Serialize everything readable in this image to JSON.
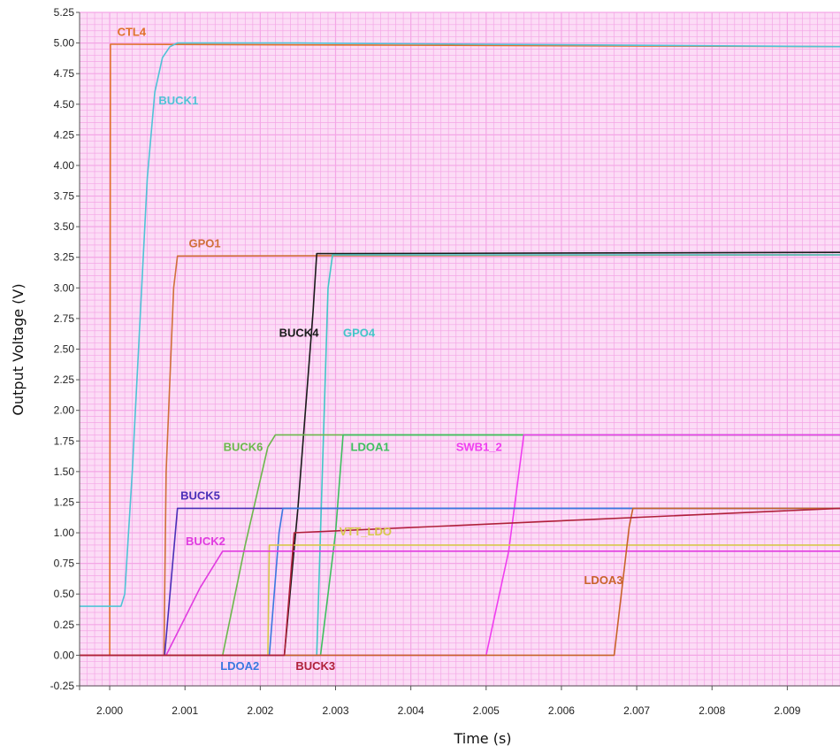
{
  "chart_data": {
    "type": "line",
    "xlabel": "Time (s)",
    "ylabel": "Output Voltage (V)",
    "xlim": [
      1.9996,
      2.0097
    ],
    "ylim": [
      -0.25,
      5.25
    ],
    "x_ticks": [
      "2.000",
      "2.001",
      "2.002",
      "2.003",
      "2.004",
      "2.005",
      "2.006",
      "2.007",
      "2.008",
      "2.009"
    ],
    "x_tick_values": [
      2.0,
      2.001,
      2.002,
      2.003,
      2.004,
      2.005,
      2.006,
      2.007,
      2.008,
      2.009
    ],
    "y_ticks": [
      "-0.25",
      "0.00",
      "0.25",
      "0.50",
      "0.75",
      "1.00",
      "1.25",
      "1.50",
      "1.75",
      "2.00",
      "2.25",
      "2.50",
      "2.75",
      "3.00",
      "3.25",
      "3.50",
      "3.75",
      "4.00",
      "4.25",
      "4.50",
      "4.75",
      "5.00",
      "5.25"
    ],
    "y_tick_values": [
      -0.25,
      0,
      0.25,
      0.5,
      0.75,
      1,
      1.25,
      1.5,
      1.75,
      2,
      2.25,
      2.5,
      2.75,
      3,
      3.25,
      3.5,
      3.75,
      4,
      4.25,
      4.5,
      4.75,
      5,
      5.25
    ],
    "grid": true,
    "grid_color": "#f4a6e6",
    "background": "#fcdcf6",
    "series": [
      {
        "name": "CTL4",
        "color": "#e0702a",
        "label_at": [
          2.0001,
          5.06
        ],
        "x": [
          1.9996,
          2.0,
          2.00001,
          2.0097
        ],
        "y": [
          0,
          0,
          4.99,
          4.97
        ]
      },
      {
        "name": "BUCK1",
        "color": "#4fc3d6",
        "label_at": [
          2.00065,
          4.5
        ],
        "x": [
          1.9996,
          2.00015,
          2.0002,
          2.0003,
          2.0004,
          2.0005,
          2.0006,
          2.0007,
          2.0008,
          2.0009,
          2.0025,
          2.0097
        ],
        "y": [
          0.4,
          0.4,
          0.5,
          1.5,
          2.7,
          3.9,
          4.6,
          4.88,
          4.97,
          5.0,
          5.0,
          4.97
        ]
      },
      {
        "name": "GPO1",
        "color": "#d0703a",
        "label_at": [
          2.00105,
          3.33
        ],
        "x": [
          1.9996,
          2.00072,
          2.00075,
          2.00085,
          2.0009,
          2.0097
        ],
        "y": [
          0,
          0,
          1.5,
          3.0,
          3.26,
          3.27
        ]
      },
      {
        "name": "BUCK4",
        "color": "#1a1a1a",
        "label_at": [
          2.00225,
          2.6
        ],
        "x": [
          1.9996,
          2.00232,
          2.0025,
          2.0027,
          2.00275,
          2.0097
        ],
        "y": [
          0,
          0,
          1.2,
          2.8,
          3.28,
          3.29
        ]
      },
      {
        "name": "GPO4",
        "color": "#42c6c8",
        "label_at": [
          2.0031,
          2.6
        ],
        "x": [
          1.9996,
          2.00275,
          2.0029,
          2.00296,
          2.0097
        ],
        "y": [
          0,
          0,
          3.0,
          3.27,
          3.27
        ]
      },
      {
        "name": "BUCK6",
        "color": "#6cb84c",
        "label_at": [
          2.00151,
          1.67
        ],
        "x": [
          1.9996,
          2.0015,
          2.0018,
          2.0021,
          2.0022,
          2.0097
        ],
        "y": [
          0,
          0,
          0.9,
          1.7,
          1.8,
          1.8
        ]
      },
      {
        "name": "LDOA1",
        "color": "#3fbf5f",
        "label_at": [
          2.0032,
          1.67
        ],
        "x": [
          1.9996,
          2.0028,
          2.003,
          2.0031,
          2.0097
        ],
        "y": [
          0,
          0,
          1.0,
          1.8,
          1.8
        ]
      },
      {
        "name": "SWB1_2",
        "color": "#f03ef0",
        "label_at": [
          2.0046,
          1.67
        ],
        "x": [
          1.9996,
          2.005,
          2.0053,
          2.0055,
          2.0097
        ],
        "y": [
          0,
          0,
          0.85,
          1.8,
          1.8
        ]
      },
      {
        "name": "BUCK5",
        "color": "#4a2fb8",
        "label_at": [
          2.00094,
          1.27
        ],
        "x": [
          1.9996,
          2.00073,
          2.0009,
          2.0097
        ],
        "y": [
          0,
          0,
          1.2,
          1.2
        ]
      },
      {
        "name": "LDOA2",
        "color": "#3a78e0",
        "label_at": [
          2.00147,
          -0.12
        ],
        "x": [
          1.9996,
          2.00212,
          2.00225,
          2.0023,
          2.0097
        ],
        "y": [
          0,
          0,
          1.0,
          1.2,
          1.2
        ]
      },
      {
        "name": "VTT_LDO",
        "color": "#d6c84a",
        "label_at": [
          2.00305,
          0.98
        ],
        "x": [
          1.9996,
          2.0021,
          2.00212,
          2.0097
        ],
        "y": [
          0,
          0,
          0.9,
          0.9
        ]
      },
      {
        "name": "BUCK2",
        "color": "#e03ce0",
        "label_at": [
          2.00101,
          0.9
        ],
        "x": [
          1.9996,
          2.00075,
          2.0012,
          2.0015,
          2.0097
        ],
        "y": [
          0,
          0,
          0.55,
          0.85,
          0.85
        ]
      },
      {
        "name": "LDOA3",
        "color": "#c8642a",
        "label_at": [
          2.0063,
          0.58
        ],
        "x": [
          1.9996,
          2.0067,
          2.0069,
          2.00695,
          2.0097
        ],
        "y": [
          0,
          0,
          1.05,
          1.2,
          1.2
        ]
      },
      {
        "name": "BUCK3",
        "color": "#b0203a",
        "label_at": [
          2.00247,
          -0.12
        ],
        "x": [
          1.9996,
          2.00232,
          2.00245,
          2.0097
        ],
        "y": [
          0,
          0,
          1.0,
          1.2
        ]
      }
    ]
  }
}
